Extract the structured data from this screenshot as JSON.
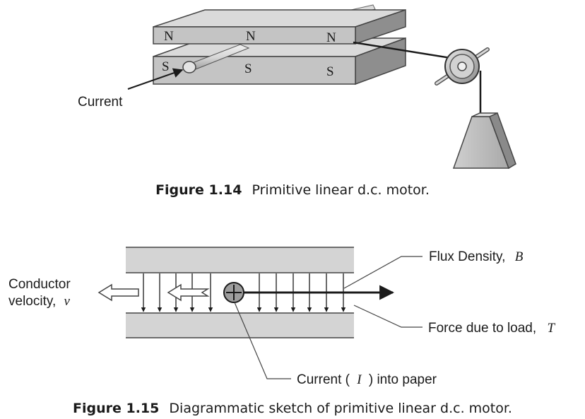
{
  "figure14": {
    "poles_top": [
      "N",
      "N",
      "N"
    ],
    "poles_bottom": [
      "S",
      "S",
      "S"
    ],
    "current_label": "Current",
    "caption_number": "Figure 1.14",
    "caption_text": "Primitive linear d.c. motor."
  },
  "figure15": {
    "flux_label": "Flux Density,",
    "flux_symbol": "B",
    "force_label": "Force due to load,",
    "force_symbol": "T",
    "conductor_label_line1": "Conductor",
    "conductor_label_line2": "velocity,",
    "conductor_symbol": "v",
    "current_label_pre": "Current (",
    "current_symbol": "I",
    "current_label_post": ") into paper",
    "caption_number": "Figure 1.15",
    "caption_text": "Diagrammatic sketch of primitive linear d.c. motor."
  }
}
